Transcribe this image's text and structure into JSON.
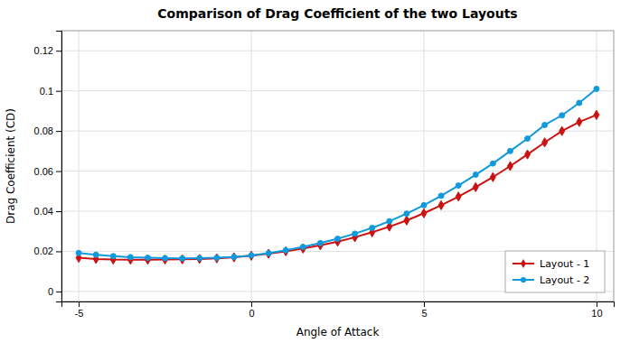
{
  "chart_data": {
    "type": "line",
    "title": "Comparison of Drag Coefficient of the two Layouts",
    "x_label": "Angle of Attack",
    "y_label": "Drag Coefficient (CD)",
    "x": [
      -5,
      -4.5,
      -4,
      -3.5,
      -3,
      -2.5,
      -2,
      -1.5,
      -1,
      -0.5,
      0,
      0.5,
      1,
      1.5,
      2,
      2.5,
      3,
      3.5,
      4,
      4.5,
      5,
      5.5,
      6,
      6.5,
      7,
      7.5,
      8,
      8.5,
      9,
      9.5,
      10
    ],
    "series": [
      {
        "name": "Layout - 1",
        "color": "#cc1111",
        "marker": "diamond",
        "values": [
          0.0168,
          0.0162,
          0.0159,
          0.0158,
          0.0158,
          0.0159,
          0.016,
          0.0162,
          0.0165,
          0.017,
          0.0178,
          0.0188,
          0.02,
          0.0214,
          0.023,
          0.0248,
          0.027,
          0.0295,
          0.0323,
          0.0354,
          0.039,
          0.043,
          0.0473,
          0.052,
          0.057,
          0.0625,
          0.0683,
          0.0743,
          0.08,
          0.0845,
          0.088
        ]
      },
      {
        "name": "Layout - 2",
        "color": "#1199dd",
        "marker": "circle",
        "values": [
          0.0192,
          0.0183,
          0.0176,
          0.0171,
          0.0168,
          0.0166,
          0.0165,
          0.0166,
          0.0168,
          0.0172,
          0.018,
          0.0191,
          0.0205,
          0.0222,
          0.0241,
          0.0263,
          0.0288,
          0.0317,
          0.035,
          0.0388,
          0.043,
          0.0477,
          0.0528,
          0.0582,
          0.0638,
          0.07,
          0.0762,
          0.083,
          0.0878,
          0.094,
          0.101
        ]
      }
    ],
    "xlim": [
      -5.5,
      10.5
    ],
    "ylim": [
      -0.005,
      0.13
    ],
    "xticks": [
      -5,
      0,
      5,
      10
    ],
    "yticks": [
      0,
      0.02,
      0.04,
      0.06,
      0.08,
      0.1,
      0.12
    ],
    "grid": true,
    "legend": "lower right"
  }
}
